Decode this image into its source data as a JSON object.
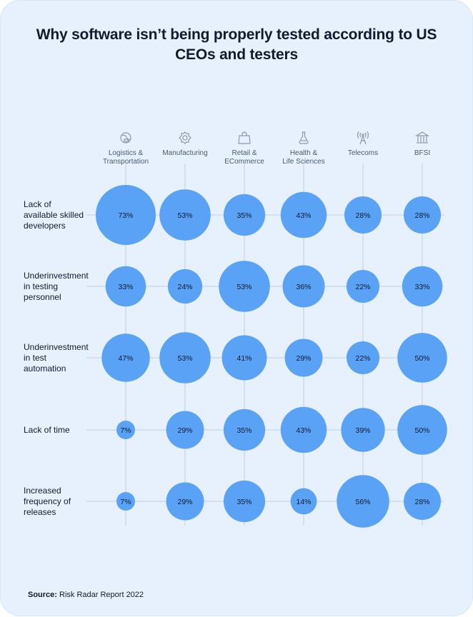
{
  "title": "Why software isn’t being properly tested according to US CEOs and testers",
  "source": {
    "prefix": "Source:",
    "text": "Risk Radar Report 2022"
  },
  "colors": {
    "background": "#e6f1fd",
    "bubble": "#5aa2f5",
    "gridline": "#c4cfdc",
    "text": "#111a2e"
  },
  "chart_data": {
    "type": "bubble-matrix",
    "value_unit": "%",
    "columns": [
      {
        "label": [
          "Logistics &",
          "Transportation"
        ],
        "icon": "globe-truck-icon"
      },
      {
        "label": [
          "Manufacturing"
        ],
        "icon": "gear-icon"
      },
      {
        "label": [
          "Retail &",
          "ECommerce"
        ],
        "icon": "shopping-bag-icon"
      },
      {
        "label": [
          "Health &",
          "Life Sciences"
        ],
        "icon": "flask-icon"
      },
      {
        "label": [
          "Telecoms"
        ],
        "icon": "antenna-icon"
      },
      {
        "label": [
          "BFSI"
        ],
        "icon": "bank-icon"
      }
    ],
    "rows": [
      {
        "label": [
          "Lack of",
          "available skilled",
          "developers"
        ],
        "values": [
          73,
          53,
          35,
          43,
          28,
          28
        ]
      },
      {
        "label": [
          "Underinvestment",
          "in testing",
          "personnel"
        ],
        "values": [
          33,
          24,
          53,
          36,
          22,
          33
        ]
      },
      {
        "label": [
          "Underinvestment",
          "in test",
          "automation"
        ],
        "values": [
          47,
          53,
          41,
          29,
          22,
          50
        ]
      },
      {
        "label": [
          "Lack of time"
        ],
        "values": [
          7,
          29,
          35,
          43,
          39,
          50
        ]
      },
      {
        "label": [
          "Increased",
          "frequency of",
          "releases"
        ],
        "values": [
          7,
          29,
          35,
          14,
          56,
          28
        ]
      }
    ]
  }
}
